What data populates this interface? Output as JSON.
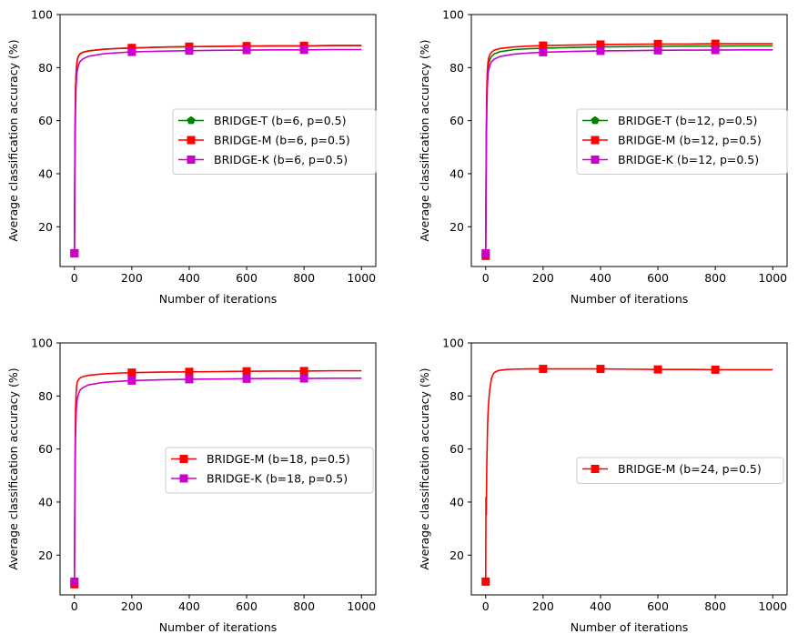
{
  "chart_data": [
    {
      "type": "line",
      "title": "",
      "xlabel": "Number of iterations",
      "ylabel": "Average classification accuracy (%)",
      "xlim": [
        -50,
        1050
      ],
      "ylim": [
        5,
        100
      ],
      "xticks": [
        0,
        200,
        400,
        600,
        800,
        1000
      ],
      "yticks": [
        20,
        40,
        60,
        80,
        100
      ],
      "legend_position": "center-right",
      "series": [
        {
          "name": "BRIDGE-T (b=6, p=0.5)",
          "color": "#008000",
          "marker": "pentagon",
          "x": [
            0,
            2,
            4,
            6,
            8,
            10,
            15,
            20,
            30,
            50,
            100,
            150,
            200,
            300,
            400,
            500,
            600,
            700,
            800,
            900,
            1000
          ],
          "y": [
            10,
            55,
            72,
            78,
            81,
            83,
            84.5,
            85.2,
            85.8,
            86.3,
            86.9,
            87.2,
            87.4,
            87.7,
            87.9,
            88.0,
            88.1,
            88.2,
            88.2,
            88.3,
            88.3
          ]
        },
        {
          "name": "BRIDGE-M (b=6, p=0.5)",
          "color": "#ff0000",
          "marker": "square",
          "x": [
            0,
            2,
            4,
            6,
            8,
            10,
            15,
            20,
            30,
            50,
            100,
            150,
            200,
            300,
            400,
            500,
            600,
            700,
            800,
            900,
            1000
          ],
          "y": [
            10,
            55,
            72,
            78,
            81,
            83,
            84.5,
            85.2,
            85.8,
            86.3,
            86.9,
            87.2,
            87.4,
            87.7,
            87.9,
            88.0,
            88.1,
            88.2,
            88.2,
            88.3,
            88.3
          ]
        },
        {
          "name": "BRIDGE-K (b=6, p=0.5)",
          "color": "#cc00cc",
          "marker": "square",
          "x": [
            0,
            2,
            4,
            6,
            8,
            10,
            15,
            20,
            30,
            50,
            100,
            150,
            200,
            300,
            400,
            500,
            600,
            700,
            800,
            900,
            1000
          ],
          "y": [
            10,
            45,
            65,
            73,
            77,
            79,
            81.2,
            82.3,
            83.3,
            84.3,
            85.2,
            85.6,
            85.9,
            86.2,
            86.4,
            86.5,
            86.6,
            86.7,
            86.7,
            86.8,
            86.8
          ]
        }
      ]
    },
    {
      "type": "line",
      "title": "",
      "xlabel": "Number of iterations",
      "ylabel": "Average classification accuracy (%)",
      "xlim": [
        -50,
        1050
      ],
      "ylim": [
        5,
        100
      ],
      "xticks": [
        0,
        200,
        400,
        600,
        800,
        1000
      ],
      "yticks": [
        20,
        40,
        60,
        80,
        100
      ],
      "legend_position": "center-right",
      "series": [
        {
          "name": "BRIDGE-T (b=12, p=0.5)",
          "color": "#008000",
          "marker": "pentagon",
          "x": [
            0,
            2,
            4,
            6,
            8,
            10,
            15,
            20,
            30,
            50,
            100,
            150,
            200,
            300,
            400,
            500,
            600,
            700,
            800,
            900,
            1000
          ],
          "y": [
            9,
            50,
            70,
            77,
            80,
            81.5,
            83.2,
            84.2,
            85.2,
            86.0,
            86.8,
            87.1,
            87.3,
            87.6,
            87.8,
            87.9,
            88.0,
            88.1,
            88.1,
            88.2,
            88.2
          ]
        },
        {
          "name": "BRIDGE-M (b=12, p=0.5)",
          "color": "#ff0000",
          "marker": "square",
          "x": [
            0,
            2,
            4,
            6,
            8,
            10,
            15,
            20,
            30,
            50,
            100,
            150,
            200,
            300,
            400,
            500,
            600,
            700,
            800,
            900,
            1000
          ],
          "y": [
            9,
            55,
            73,
            79,
            82,
            83.5,
            85.0,
            85.8,
            86.6,
            87.2,
            87.8,
            88.1,
            88.3,
            88.5,
            88.7,
            88.8,
            88.9,
            88.9,
            89.0,
            89.0,
            89.0
          ]
        },
        {
          "name": "BRIDGE-K (b=12, p=0.5)",
          "color": "#cc00cc",
          "marker": "square",
          "x": [
            0,
            2,
            4,
            6,
            8,
            10,
            15,
            20,
            30,
            50,
            100,
            150,
            200,
            300,
            400,
            500,
            600,
            700,
            800,
            900,
            1000
          ],
          "y": [
            10,
            45,
            65,
            73,
            77,
            79,
            81.0,
            82.2,
            83.2,
            84.2,
            85.1,
            85.5,
            85.8,
            86.1,
            86.3,
            86.4,
            86.5,
            86.6,
            86.6,
            86.7,
            86.7
          ]
        }
      ]
    },
    {
      "type": "line",
      "title": "",
      "xlabel": "Number of iterations",
      "ylabel": "Average classification accuracy (%)",
      "xlim": [
        -50,
        1050
      ],
      "ylim": [
        5,
        100
      ],
      "xticks": [
        0,
        200,
        400,
        600,
        800,
        1000
      ],
      "yticks": [
        20,
        40,
        60,
        80,
        100
      ],
      "legend_position": "center-right",
      "series": [
        {
          "name": "BRIDGE-M (b=18, p=0.5)",
          "color": "#ff0000",
          "marker": "square",
          "x": [
            0,
            2,
            4,
            6,
            8,
            10,
            15,
            20,
            30,
            50,
            100,
            150,
            200,
            300,
            400,
            500,
            600,
            700,
            800,
            900,
            1000
          ],
          "y": [
            9,
            55,
            75,
            81,
            84,
            85.2,
            86.3,
            86.8,
            87.3,
            87.8,
            88.3,
            88.6,
            88.8,
            89.0,
            89.1,
            89.2,
            89.3,
            89.4,
            89.4,
            89.5,
            89.5
          ]
        },
        {
          "name": "BRIDGE-K (b=18, p=0.5)",
          "color": "#cc00cc",
          "marker": "square",
          "x": [
            0,
            2,
            4,
            6,
            8,
            10,
            15,
            20,
            30,
            50,
            100,
            150,
            200,
            300,
            400,
            500,
            600,
            700,
            800,
            900,
            1000
          ],
          "y": [
            10,
            45,
            65,
            73,
            77,
            79,
            81.0,
            82.2,
            83.2,
            84.2,
            85.1,
            85.5,
            85.8,
            86.1,
            86.3,
            86.4,
            86.5,
            86.6,
            86.6,
            86.7,
            86.7
          ]
        }
      ]
    },
    {
      "type": "line",
      "title": "",
      "xlabel": "Number of iterations",
      "ylabel": "Average classification accuracy (%)",
      "xlim": [
        -50,
        1050
      ],
      "ylim": [
        5,
        100
      ],
      "xticks": [
        0,
        200,
        400,
        600,
        800,
        1000
      ],
      "yticks": [
        20,
        40,
        60,
        80,
        100
      ],
      "legend_position": "center-right",
      "series": [
        {
          "name": "BRIDGE-M (b=24, p=0.5)",
          "color": "#ff0000",
          "marker": "square",
          "x": [
            0,
            1,
            2,
            3,
            4,
            5,
            6,
            7,
            8,
            10,
            12,
            15,
            20,
            25,
            30,
            40,
            50,
            75,
            100,
            150,
            200,
            300,
            400,
            500,
            600,
            700,
            800,
            900,
            1000
          ],
          "y": [
            10,
            42,
            35,
            45,
            55,
            60,
            66,
            70,
            73,
            77,
            80,
            83,
            86.5,
            88.0,
            88.8,
            89.4,
            89.7,
            90.0,
            90.1,
            90.2,
            90.2,
            90.2,
            90.2,
            90.1,
            90.0,
            90.0,
            89.9,
            89.9,
            89.9
          ]
        }
      ]
    }
  ]
}
